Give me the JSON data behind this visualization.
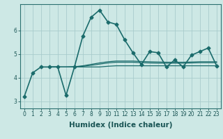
{
  "xlabel": "Humidex (Indice chaleur)",
  "ylabel": "",
  "background_color": "#cde8e5",
  "grid_color": "#a8cccc",
  "line_color": "#1a6b6b",
  "xlim": [
    -0.5,
    23.5
  ],
  "ylim": [
    2.7,
    7.1
  ],
  "xticks": [
    0,
    1,
    2,
    3,
    4,
    5,
    6,
    7,
    8,
    9,
    10,
    11,
    12,
    13,
    14,
    15,
    16,
    17,
    18,
    19,
    20,
    21,
    22,
    23
  ],
  "yticks": [
    3,
    4,
    5,
    6
  ],
  "series": [
    {
      "x": [
        0,
        1,
        2,
        3,
        4,
        5,
        6,
        7,
        8,
        9,
        10,
        11,
        12,
        13,
        14,
        15,
        16,
        17,
        18,
        19,
        20,
        21,
        22,
        23
      ],
      "y": [
        3.2,
        4.2,
        4.45,
        4.45,
        4.45,
        3.25,
        4.45,
        5.75,
        6.55,
        6.85,
        6.35,
        6.25,
        5.6,
        5.05,
        4.55,
        5.1,
        5.05,
        4.45,
        4.75,
        4.45,
        4.95,
        5.1,
        5.25,
        4.5
      ],
      "marker": "D",
      "markersize": 2.5,
      "linewidth": 1.2,
      "has_marker": true
    },
    {
      "x": [
        3,
        4,
        5,
        6,
        7,
        8,
        9,
        10,
        11,
        12,
        13,
        14,
        15,
        16,
        17,
        18,
        19,
        20,
        21,
        22,
        23
      ],
      "y": [
        4.45,
        4.45,
        4.45,
        4.45,
        4.45,
        4.45,
        4.45,
        4.48,
        4.5,
        4.5,
        4.5,
        4.5,
        4.5,
        4.5,
        4.5,
        4.5,
        4.5,
        4.5,
        4.5,
        4.5,
        4.5
      ],
      "marker": null,
      "markersize": 0,
      "linewidth": 0.9,
      "has_marker": false
    },
    {
      "x": [
        3,
        4,
        5,
        6,
        7,
        8,
        9,
        10,
        11,
        12,
        13,
        14,
        15,
        16,
        17,
        18,
        19,
        20,
        21,
        22,
        23
      ],
      "y": [
        4.45,
        4.45,
        4.45,
        4.46,
        4.5,
        4.56,
        4.62,
        4.67,
        4.7,
        4.7,
        4.7,
        4.68,
        4.67,
        4.66,
        4.65,
        4.65,
        4.65,
        4.66,
        4.67,
        4.67,
        4.67
      ],
      "marker": null,
      "markersize": 0,
      "linewidth": 0.9,
      "has_marker": false
    },
    {
      "x": [
        3,
        4,
        5,
        6,
        7,
        8,
        9,
        10,
        11,
        12,
        13,
        14,
        15,
        16,
        17,
        18,
        19,
        20,
        21,
        22,
        23
      ],
      "y": [
        4.45,
        4.45,
        4.45,
        4.455,
        4.48,
        4.52,
        4.57,
        4.62,
        4.65,
        4.65,
        4.65,
        4.63,
        4.62,
        4.61,
        4.61,
        4.61,
        4.61,
        4.62,
        4.63,
        4.63,
        4.63
      ],
      "marker": null,
      "markersize": 0,
      "linewidth": 0.9,
      "has_marker": false
    }
  ],
  "tick_fontsize": 5.5,
  "xlabel_fontsize": 7.5
}
